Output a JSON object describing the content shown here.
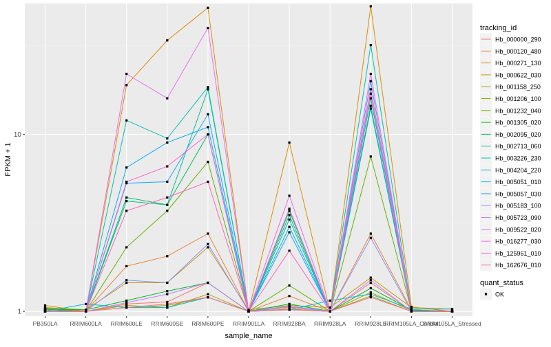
{
  "chart_data": {
    "type": "line",
    "title": "",
    "xlabel": "sample_name",
    "ylabel": "FPKM + 1",
    "y_scale": "log10",
    "ylim": [
      0.94,
      55
    ],
    "y_ticks": [
      {
        "value": 1,
        "label": "1"
      },
      {
        "value": 10,
        "label": "10"
      }
    ],
    "categories": [
      "PB350LA",
      "RRIM600LA",
      "RRIM600LE",
      "RRIM600SE",
      "RRIM600PE",
      "RRIM901LA",
      "RRIM928BA",
      "RRIM928LA",
      "RRIM928LE",
      "RRIM105LA_Control",
      "RRIM105LA_Stressed"
    ],
    "x_tick_labels": [
      "PB350LA",
      "RRIM600LA",
      "RRIM600LE",
      "RRIM600SE",
      "RRIM600PE",
      "RRIM901LA",
      "RRIM928BA",
      "RRIM928LA",
      "RRIM928LE",
      "RRIM105LA_Control",
      "RRIM105LA_Stressed"
    ],
    "legend_placement": "right",
    "grid": true,
    "legend_title": "tracking_id",
    "legend2_title": "quant_status",
    "legend2_items": [
      "OK"
    ],
    "series": [
      {
        "name": "Hb_000000_290",
        "color": "#F8766D",
        "values": [
          1.02,
          1.0,
          1.1,
          1.13,
          1.45,
          1.0,
          1.06,
          1.0,
          1.45,
          1.01,
          1.0
        ]
      },
      {
        "name": "Hb_000120_480",
        "color": "#EC8239",
        "values": [
          1.05,
          1.0,
          1.8,
          2.05,
          2.75,
          1.0,
          1.22,
          1.0,
          2.75,
          1.02,
          1.0
        ]
      },
      {
        "name": "Hb_000271_130",
        "color": "#DB8E00",
        "values": [
          1.08,
          1.0,
          19.0,
          34.0,
          52.0,
          1.0,
          9.0,
          1.0,
          53.0,
          1.06,
          1.0
        ]
      },
      {
        "name": "Hb_000622_030",
        "color": "#C79800",
        "values": [
          1.05,
          1.02,
          1.45,
          1.45,
          2.3,
          1.02,
          1.08,
          1.05,
          1.55,
          1.05,
          1.03
        ]
      },
      {
        "name": "Hb_001158_250",
        "color": "#AEA200",
        "values": [
          1.04,
          1.0,
          1.08,
          1.05,
          1.25,
          1.0,
          1.03,
          1.0,
          1.28,
          1.01,
          1.0
        ]
      },
      {
        "name": "Hb_001206_100",
        "color": "#8FAA00",
        "values": [
          1.03,
          1.0,
          1.05,
          1.08,
          1.2,
          1.0,
          1.02,
          1.0,
          1.22,
          1.0,
          1.0
        ]
      },
      {
        "name": "Hb_001232_040",
        "color": "#64B200",
        "values": [
          1.02,
          1.0,
          2.3,
          3.7,
          7.0,
          1.0,
          1.4,
          1.0,
          7.5,
          1.01,
          1.0
        ]
      },
      {
        "name": "Hb_001305_020",
        "color": "#00B81B",
        "values": [
          1.03,
          1.02,
          1.15,
          1.3,
          1.45,
          1.0,
          1.1,
          1.0,
          1.35,
          1.02,
          1.0
        ]
      },
      {
        "name": "Hb_002095_020",
        "color": "#00BD5C",
        "values": [
          1.02,
          1.0,
          4.4,
          4.0,
          10.0,
          1.0,
          3.7,
          1.0,
          14.0,
          1.02,
          1.0
        ]
      },
      {
        "name": "Hb_002713_060",
        "color": "#00C08E",
        "values": [
          1.02,
          1.0,
          4.2,
          4.0,
          18.0,
          1.0,
          3.5,
          1.0,
          16.0,
          1.01,
          1.0
        ]
      },
      {
        "name": "Hb_003226_230",
        "color": "#00C1B2",
        "values": [
          1.0,
          1.0,
          12.0,
          9.5,
          18.5,
          1.0,
          3.3,
          1.0,
          32.0,
          1.0,
          1.0
        ]
      },
      {
        "name": "Hb_004204_220",
        "color": "#00BCD6",
        "values": [
          1.0,
          1.1,
          1.05,
          1.05,
          1.2,
          1.0,
          1.02,
          1.15,
          1.25,
          1.03,
          1.03
        ]
      },
      {
        "name": "Hb_005051_010",
        "color": "#00B2F3",
        "values": [
          1.0,
          1.0,
          6.5,
          9.0,
          11.0,
          1.0,
          3.0,
          1.0,
          14.5,
          1.0,
          1.0
        ]
      },
      {
        "name": "Hb_005057_030",
        "color": "#1FA5FF",
        "values": [
          1.0,
          1.0,
          5.3,
          5.4,
          13.0,
          1.0,
          2.8,
          1.0,
          20.0,
          1.0,
          1.0
        ]
      },
      {
        "name": "Hb_005183_100",
        "color": "#8B93FF",
        "values": [
          1.0,
          1.0,
          1.5,
          1.45,
          2.4,
          1.0,
          1.07,
          1.0,
          2.6,
          1.0,
          1.0
        ]
      },
      {
        "name": "Hb_005723_090",
        "color": "#C77CFF",
        "values": [
          1.0,
          1.0,
          1.12,
          1.25,
          1.45,
          1.0,
          1.05,
          1.0,
          1.5,
          1.0,
          1.0
        ]
      },
      {
        "name": "Hb_009522_020",
        "color": "#E96DF2",
        "values": [
          1.0,
          1.0,
          22.0,
          16.0,
          40.0,
          1.0,
          4.5,
          1.0,
          22.0,
          1.0,
          1.0
        ]
      },
      {
        "name": "Hb_016277_030",
        "color": "#F962DD",
        "values": [
          1.0,
          1.0,
          5.4,
          6.6,
          10.0,
          1.0,
          3.8,
          1.0,
          18.0,
          1.0,
          1.0
        ]
      },
      {
        "name": "Hb_125961_010",
        "color": "#FF62BC",
        "values": [
          1.0,
          1.0,
          3.7,
          4.4,
          5.4,
          1.0,
          2.2,
          1.0,
          17.0,
          1.0,
          1.0
        ]
      },
      {
        "name": "Hb_162676_010",
        "color": "#FF6C91",
        "values": [
          1.0,
          1.0,
          1.05,
          1.1,
          1.2,
          1.0,
          1.02,
          1.0,
          1.2,
          1.0,
          1.0
        ]
      }
    ]
  }
}
